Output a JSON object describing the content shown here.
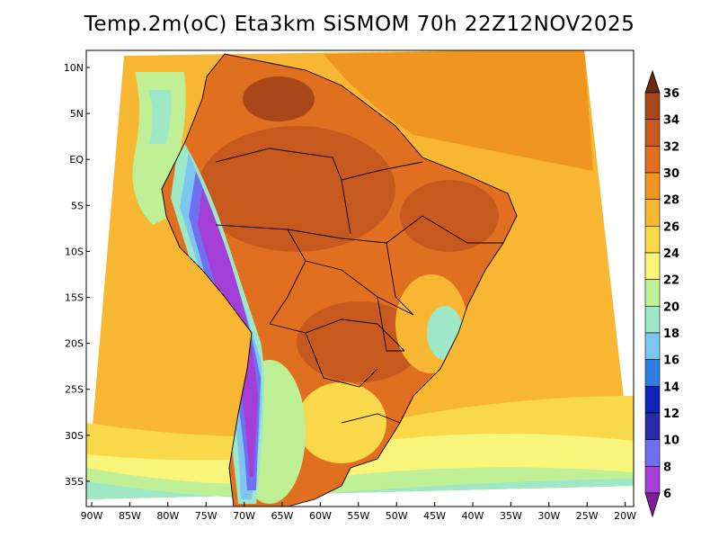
{
  "title": "Temp.2m(oC) Eta3km SiSMOM 70h 22Z12NOV2025",
  "latitude_labels": [
    "10N",
    "5N",
    "EQ",
    "5S",
    "10S",
    "15S",
    "20S",
    "25S",
    "30S",
    "35S"
  ],
  "longitude_labels": [
    "90W",
    "85W",
    "80W",
    "75W",
    "70W",
    "65W",
    "60W",
    "55W",
    "50W",
    "45W",
    "40W",
    "35W",
    "30W",
    "25W",
    "20W"
  ],
  "colorbar": {
    "unit": "oC",
    "labels": [
      "36",
      "34",
      "32",
      "30",
      "28",
      "26",
      "24",
      "22",
      "20",
      "18",
      "16",
      "14",
      "12",
      "10",
      "8",
      "6"
    ],
    "colors": [
      "#6b2a0e",
      "#a8481a",
      "#c8591e",
      "#e0701f",
      "#f0951f",
      "#f8b733",
      "#f9d84a",
      "#f7f57a",
      "#bff095",
      "#9ee8c8",
      "#7cc7f2",
      "#2f7fe0",
      "#0c23b5",
      "#2929a5",
      "#6f6fef",
      "#a33ed6",
      "#7f1d9b"
    ]
  },
  "scale": {
    "palette": [
      "#7f1d9b",
      "#a33ed6",
      "#6f6fef",
      "#2929a5",
      "#0c23b5",
      "#2f7fe0",
      "#7cc7f2",
      "#9ee8c8",
      "#bff095",
      "#f7f57a",
      "#f9d84a",
      "#f8b733",
      "#f0951f",
      "#e0701f",
      "#c8591e",
      "#a8481a",
      "#6b2a0e"
    ]
  }
}
